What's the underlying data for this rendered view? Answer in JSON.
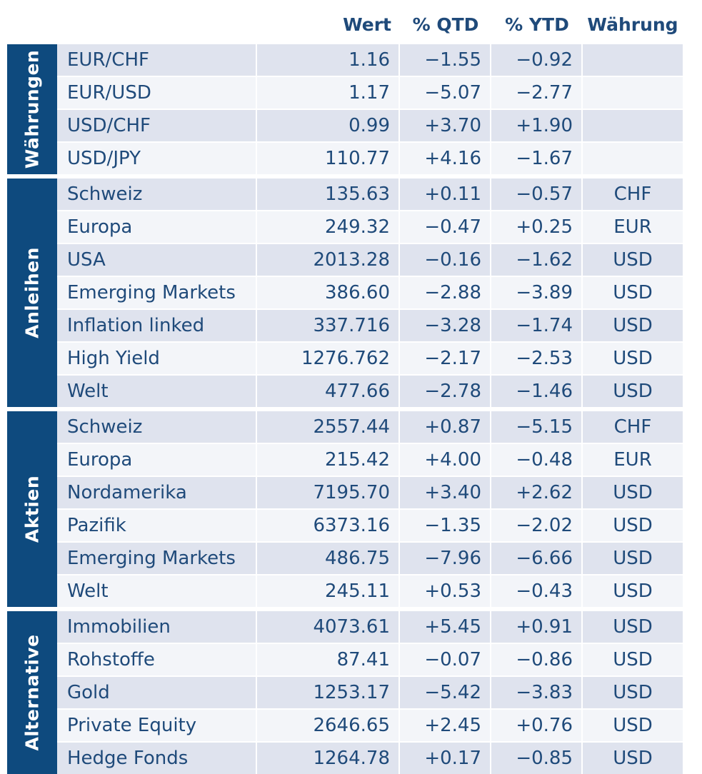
{
  "header": {
    "wert": "Wert",
    "qtd": "% QTD",
    "ytd": "% YTD",
    "waehrung": "Währung"
  },
  "groups": [
    {
      "label": "Währungen",
      "rows": [
        {
          "name": "EUR/CHF",
          "wert": "1.16",
          "qtd": "−1.55",
          "ytd": "−0.92",
          "cur": ""
        },
        {
          "name": "EUR/USD",
          "wert": "1.17",
          "qtd": "−5.07",
          "ytd": "−2.77",
          "cur": ""
        },
        {
          "name": "USD/CHF",
          "wert": "0.99",
          "qtd": "+3.70",
          "ytd": "+1.90",
          "cur": ""
        },
        {
          "name": "USD/JPY",
          "wert": "110.77",
          "qtd": "+4.16",
          "ytd": "−1.67",
          "cur": ""
        }
      ]
    },
    {
      "label": "Anleihen",
      "rows": [
        {
          "name": "Schweiz",
          "wert": "135.63",
          "qtd": "+0.11",
          "ytd": "−0.57",
          "cur": "CHF"
        },
        {
          "name": "Europa",
          "wert": "249.32",
          "qtd": "−0.47",
          "ytd": "+0.25",
          "cur": "EUR"
        },
        {
          "name": "USA",
          "wert": "2013.28",
          "qtd": "−0.16",
          "ytd": "−1.62",
          "cur": "USD"
        },
        {
          "name": "Emerging Markets",
          "wert": "386.60",
          "qtd": "−2.88",
          "ytd": "−3.89",
          "cur": "USD"
        },
        {
          "name": "Inflation linked",
          "wert": "337.716",
          "qtd": "−3.28",
          "ytd": "−1.74",
          "cur": "USD"
        },
        {
          "name": "High Yield",
          "wert": "1276.762",
          "qtd": "−2.17",
          "ytd": "−2.53",
          "cur": "USD"
        },
        {
          "name": "Welt",
          "wert": "477.66",
          "qtd": "−2.78",
          "ytd": "−1.46",
          "cur": "USD"
        }
      ]
    },
    {
      "label": "Aktien",
      "rows": [
        {
          "name": "Schweiz",
          "wert": "2557.44",
          "qtd": "+0.87",
          "ytd": "−5.15",
          "cur": "CHF"
        },
        {
          "name": "Europa",
          "wert": "215.42",
          "qtd": "+4.00",
          "ytd": "−0.48",
          "cur": "EUR"
        },
        {
          "name": "Nordamerika",
          "wert": "7195.70",
          "qtd": "+3.40",
          "ytd": "+2.62",
          "cur": "USD"
        },
        {
          "name": "Pazifik",
          "wert": "6373.16",
          "qtd": "−1.35",
          "ytd": "−2.02",
          "cur": "USD"
        },
        {
          "name": "Emerging Markets",
          "wert": "486.75",
          "qtd": "−7.96",
          "ytd": "−6.66",
          "cur": "USD"
        },
        {
          "name": "Welt",
          "wert": "245.11",
          "qtd": "+0.53",
          "ytd": "−0.43",
          "cur": "USD"
        }
      ]
    },
    {
      "label": "Alternative",
      "rows": [
        {
          "name": "Immobilien",
          "wert": "4073.61",
          "qtd": "+5.45",
          "ytd": "+0.91",
          "cur": "USD"
        },
        {
          "name": "Rohstoffe",
          "wert": "87.41",
          "qtd": "−0.07",
          "ytd": "−0.86",
          "cur": "USD"
        },
        {
          "name": "Gold",
          "wert": "1253.17",
          "qtd": "−5.42",
          "ytd": "−3.83",
          "cur": "USD"
        },
        {
          "name": "Private Equity",
          "wert": "2646.65",
          "qtd": "+2.45",
          "ytd": "+0.76",
          "cur": "USD"
        },
        {
          "name": "Hedge Fonds",
          "wert": "1264.78",
          "qtd": "+0.17",
          "ytd": "−0.85",
          "cur": "USD"
        }
      ]
    }
  ]
}
